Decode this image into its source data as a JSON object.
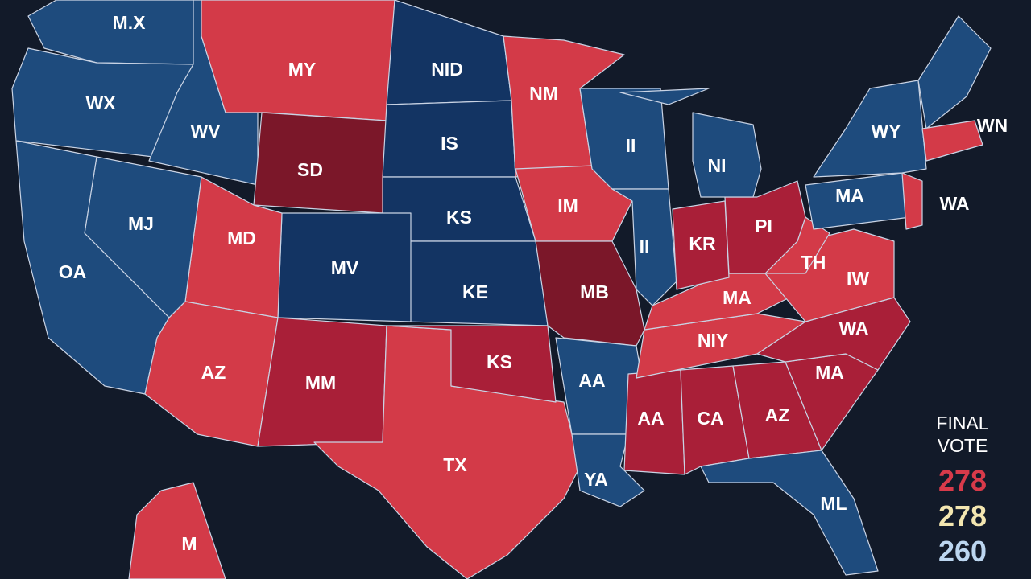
{
  "map": {
    "labels": [
      "M.X",
      "MY",
      "NID",
      "NM",
      "WX",
      "WV",
      "IS",
      "SD",
      "II",
      "NI",
      "WY",
      "WN",
      "MJ",
      "MD",
      "KS",
      "IM",
      "MA",
      "WA",
      "OA",
      "MV",
      "II",
      "KR",
      "PI",
      "TH",
      "IW",
      "KE",
      "MB",
      "MA",
      "NIY",
      "WA",
      "AZ",
      "MM",
      "KS",
      "AA",
      "MA",
      "AA",
      "CA",
      "AZ",
      "TX",
      "YA",
      "ML",
      "M"
    ]
  },
  "sidebar": {
    "title": "FINAL VOTE",
    "counts": [
      {
        "value": "278",
        "color": "#d83a4a"
      },
      {
        "value": "278",
        "color": "#f3e6b0"
      },
      {
        "value": "260",
        "color": "#bcd6f0"
      }
    ]
  }
}
